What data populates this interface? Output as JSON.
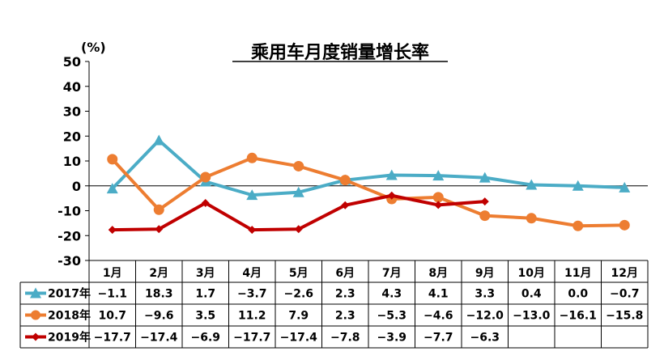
{
  "chart_data": {
    "type": "line",
    "title": "乘用车月度销量增长率",
    "unit_label": "(%)",
    "ylim": [
      -30,
      50
    ],
    "yticks": [
      50,
      40,
      30,
      20,
      10,
      0,
      -10,
      -20,
      -30
    ],
    "grid": false,
    "legend": "data-table-left",
    "categories": [
      "1月",
      "2月",
      "3月",
      "4月",
      "5月",
      "6月",
      "7月",
      "8月",
      "9月",
      "10月",
      "11月",
      "12月"
    ],
    "series": [
      {
        "name": "2017年",
        "color": "#4BACC6",
        "marker": "triangle",
        "values": [
          -1.1,
          18.3,
          1.7,
          -3.7,
          -2.6,
          2.3,
          4.3,
          4.1,
          3.3,
          0.4,
          0.0,
          -0.7
        ],
        "labels": [
          "-1.1",
          "18.3",
          "1.7",
          "-3.7",
          "-2.6",
          "2.3",
          "4.3",
          "4.1",
          "3.3",
          "0.4",
          "0.0",
          "-0.7"
        ]
      },
      {
        "name": "2018年",
        "color": "#ED7D31",
        "marker": "circle",
        "values": [
          10.7,
          -9.6,
          3.5,
          11.2,
          7.9,
          2.3,
          -5.3,
          -4.6,
          -12.0,
          -13.0,
          -16.1,
          -15.8
        ],
        "labels": [
          "10.7",
          "-9.6",
          "3.5",
          "11.2",
          "7.9",
          "2.3",
          "-5.3",
          "-4.6",
          "-12.0",
          "-13.0",
          "-16.1",
          "-15.8"
        ]
      },
      {
        "name": "2019年",
        "color": "#C00000",
        "marker": "diamond",
        "values": [
          -17.7,
          -17.4,
          -6.9,
          -17.7,
          -17.4,
          -7.8,
          -3.9,
          -7.7,
          -6.3,
          null,
          null,
          null
        ],
        "labels": [
          "-17.7",
          "-17.4",
          "-6.9",
          "-17.7",
          "-17.4",
          "-7.8",
          "-3.9",
          "-7.7",
          "-6.3",
          "",
          "",
          ""
        ]
      }
    ]
  }
}
